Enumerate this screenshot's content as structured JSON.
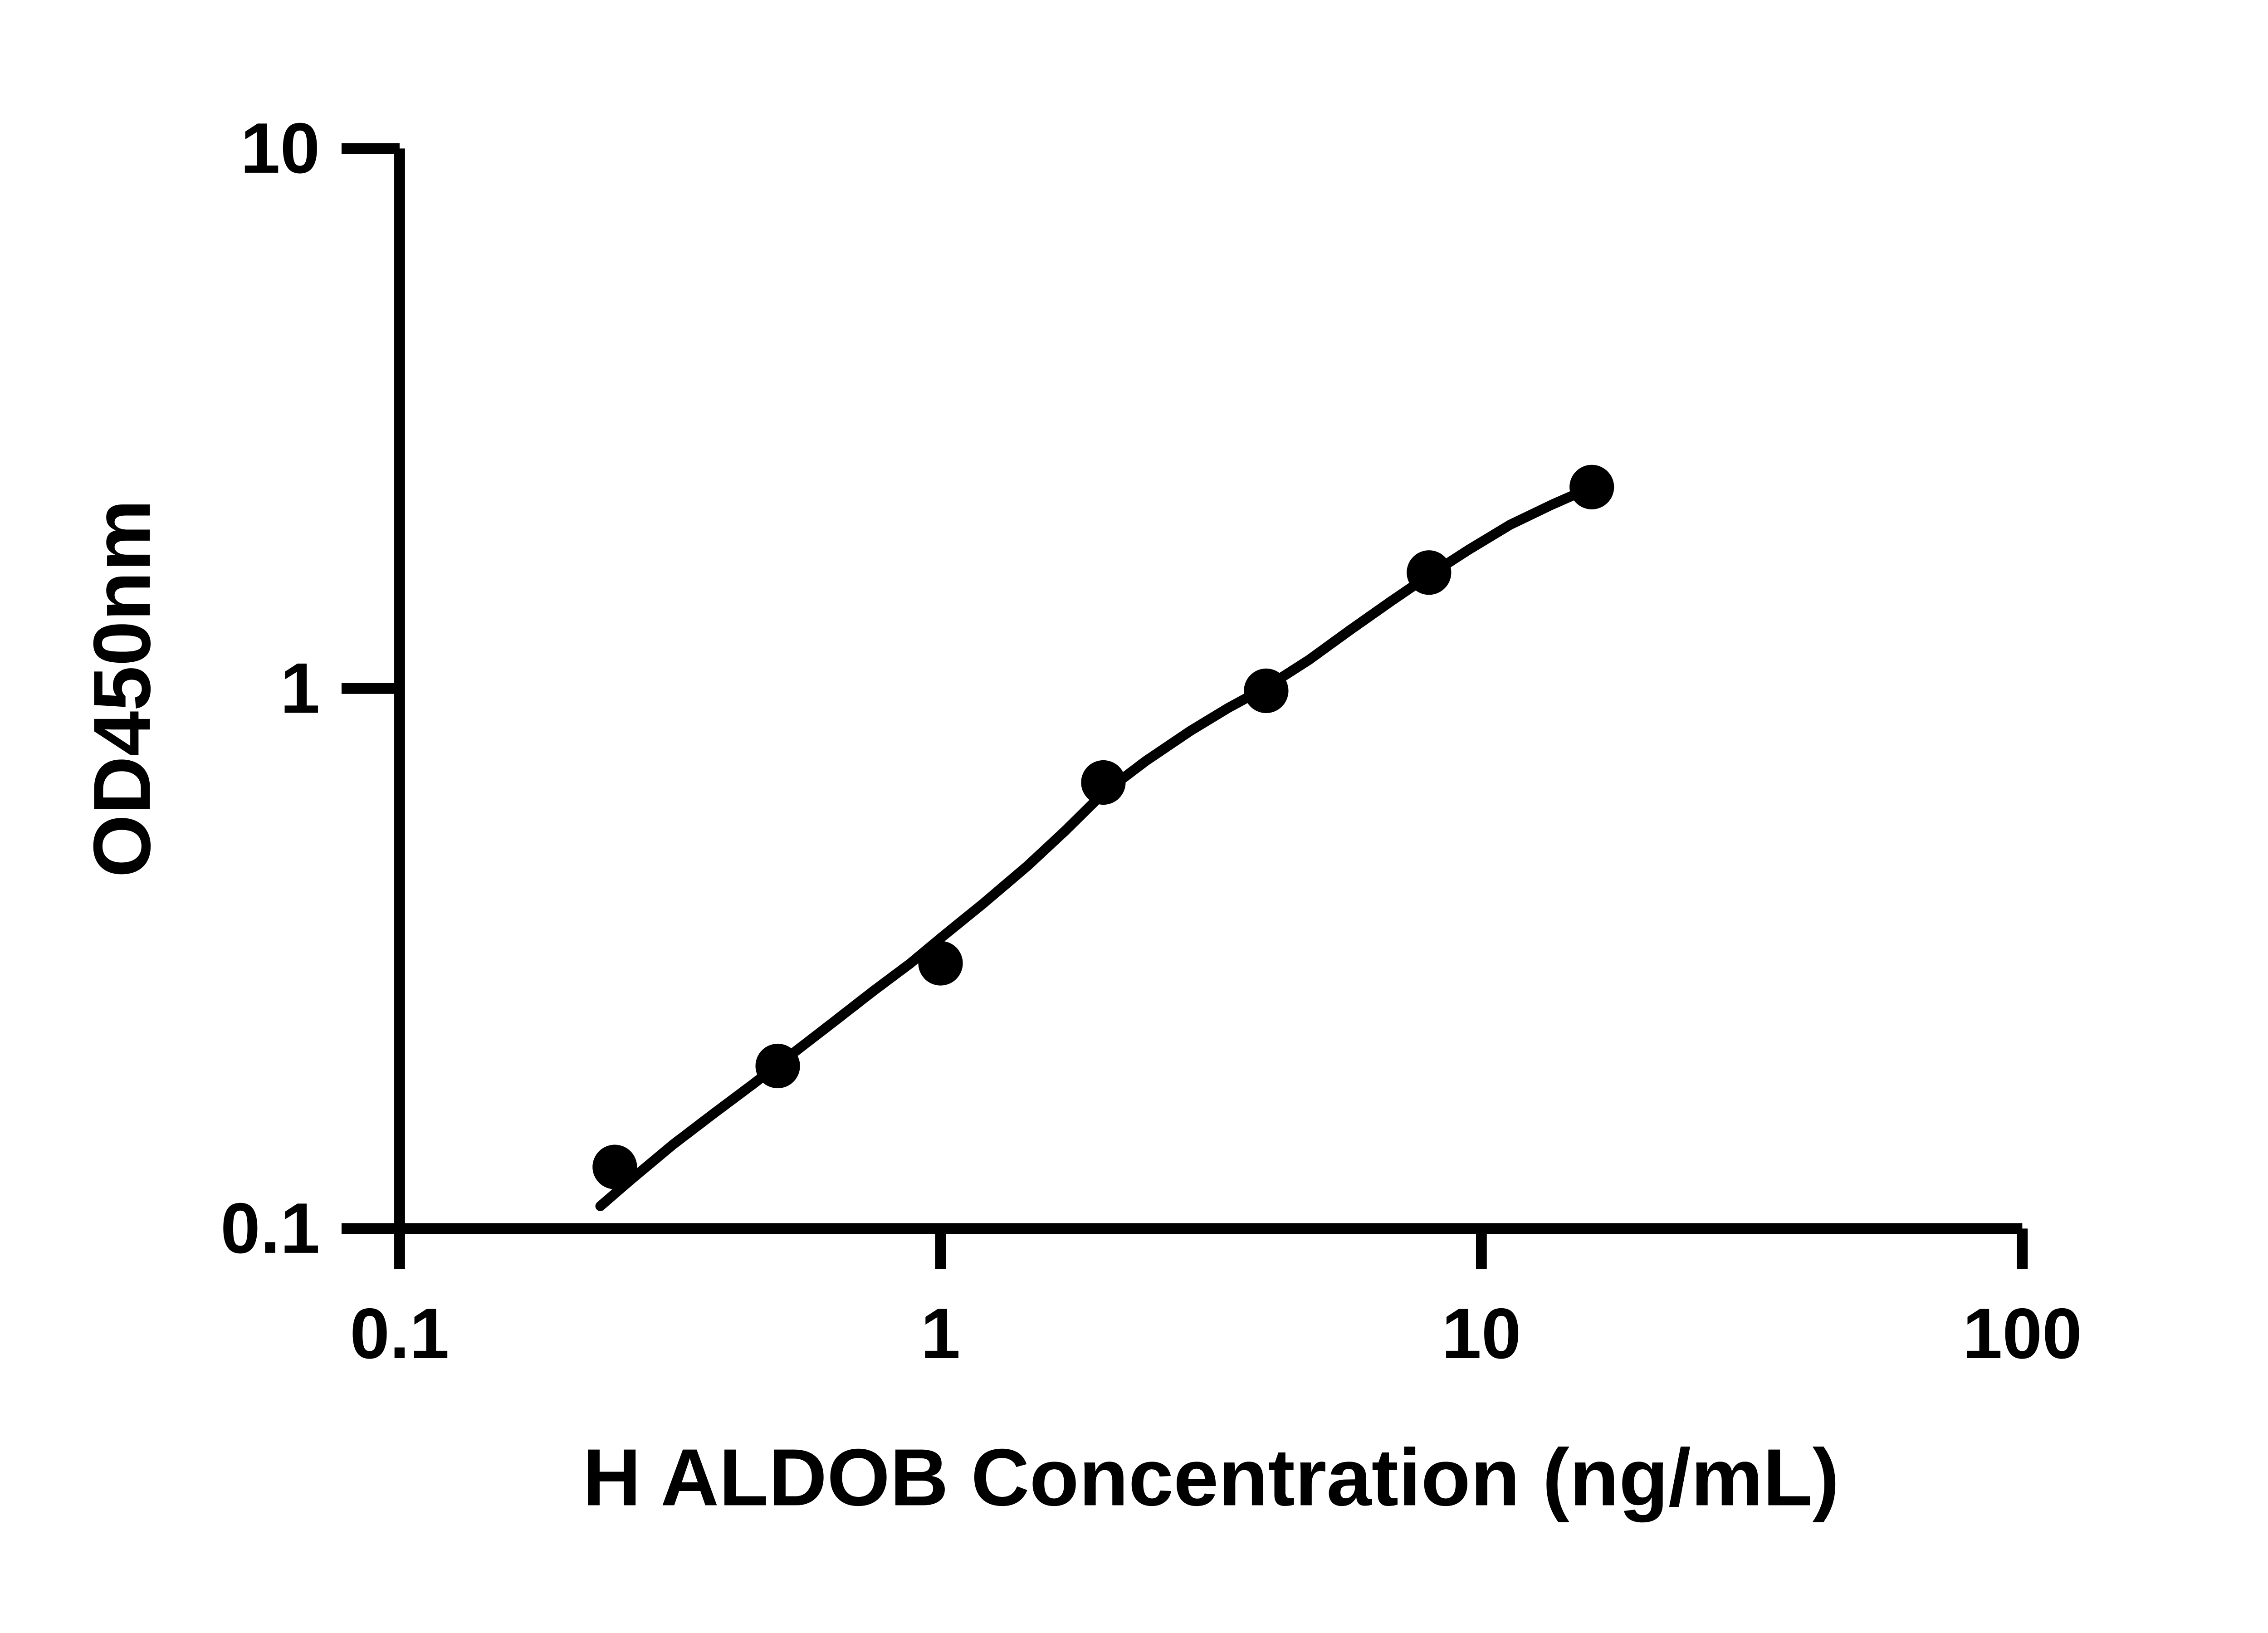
{
  "figure": {
    "background": "#ffffff",
    "ink_color": "#000000"
  },
  "chart_data": {
    "type": "scatter",
    "title": "",
    "xlabel": "H ALDOB Concentration (ng/mL)",
    "ylabel": "OD450nm",
    "x_scale": "log",
    "y_scale": "log",
    "xlim": [
      0.1,
      100
    ],
    "ylim": [
      0.1,
      10
    ],
    "x_ticks": [
      "0.1",
      "1",
      "10",
      "100"
    ],
    "y_ticks": [
      "0.1",
      "1",
      "10"
    ],
    "grid": false,
    "legend": "none",
    "marker": "filled-circle",
    "marker_color": "#000000",
    "line_color": "#000000",
    "series": [
      {
        "name": "standard-points",
        "kind": "points",
        "points": [
          [
            0.25,
            0.13
          ],
          [
            0.5,
            0.2
          ],
          [
            1,
            0.31
          ],
          [
            2,
            0.67
          ],
          [
            4,
            0.99
          ],
          [
            8,
            1.64
          ],
          [
            16,
            2.36
          ]
        ]
      },
      {
        "name": "fit-curve",
        "kind": "line",
        "points": [
          [
            0.235,
            0.11
          ],
          [
            0.27,
            0.124
          ],
          [
            0.32,
            0.143
          ],
          [
            0.38,
            0.163
          ],
          [
            0.45,
            0.185
          ],
          [
            0.53,
            0.21
          ],
          [
            0.63,
            0.24
          ],
          [
            0.75,
            0.275
          ],
          [
            0.88,
            0.31
          ],
          [
            1.0,
            0.345
          ],
          [
            1.2,
            0.4
          ],
          [
            1.45,
            0.47
          ],
          [
            1.7,
            0.545
          ],
          [
            2.0,
            0.64
          ],
          [
            2.4,
            0.735
          ],
          [
            2.9,
            0.835
          ],
          [
            3.4,
            0.92
          ],
          [
            4.0,
            1.005
          ],
          [
            4.8,
            1.13
          ],
          [
            5.7,
            1.28
          ],
          [
            6.8,
            1.45
          ],
          [
            8.0,
            1.62
          ],
          [
            9.5,
            1.81
          ],
          [
            11.3,
            2.01
          ],
          [
            13.5,
            2.19
          ],
          [
            16.0,
            2.36
          ]
        ]
      }
    ]
  }
}
